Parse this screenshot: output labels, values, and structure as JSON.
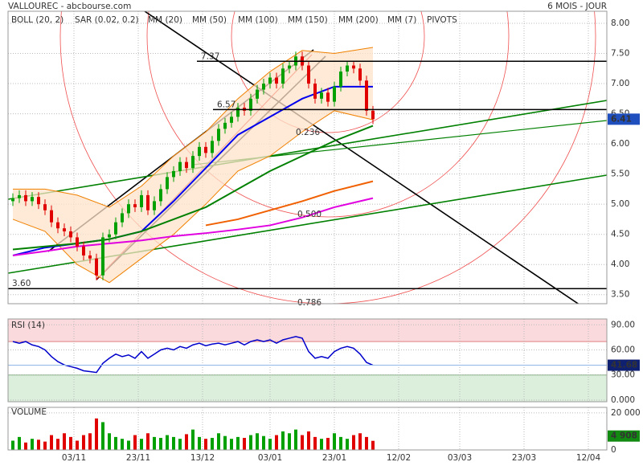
{
  "header": {
    "title": "VALLOUREC - abcbourse.com",
    "period": "6 MOIS - JOUR"
  },
  "chart_data": [
    {
      "type": "candlestick",
      "xlim": [
        -20.5,
        165.75
      ],
      "xticks": [
        {
          "value": 0,
          "label": "03/11"
        },
        {
          "value": 20,
          "label": "23/11"
        },
        {
          "value": 40,
          "label": "13/12"
        },
        {
          "value": 61,
          "label": "03/01"
        },
        {
          "value": 81,
          "label": "23/01"
        },
        {
          "value": 101,
          "label": "12/02"
        },
        {
          "value": 120,
          "label": "03/03"
        },
        {
          "value": 140,
          "label": "23/03"
        },
        {
          "value": 160,
          "label": "12/04"
        }
      ],
      "ylim": [
        3.35,
        8.2
      ],
      "yticks": [
        {
          "value": 3.5,
          "label": "3.50"
        },
        {
          "value": 4,
          "label": "4.00"
        },
        {
          "value": 4.5,
          "label": "4.50"
        },
        {
          "value": 5,
          "label": "5.00"
        },
        {
          "value": 5.5,
          "label": "5.50"
        },
        {
          "value": 6,
          "label": "6.00"
        },
        {
          "value": 6.5,
          "label": "6.50"
        },
        {
          "value": 7,
          "label": "7.00"
        },
        {
          "value": 7.5,
          "label": "7.50"
        },
        {
          "value": 8,
          "label": "8.00"
        }
      ],
      "grid": true,
      "up_color": "#00a000",
      "down_color": "#e00000",
      "x": [
        -19,
        -17,
        -15,
        -13,
        -11,
        -9,
        -7,
        -5,
        -3,
        -1,
        1,
        3,
        5,
        7,
        9,
        11,
        13,
        15,
        17,
        19,
        21,
        23,
        25,
        27,
        29,
        31,
        33,
        35,
        37,
        39,
        41,
        43,
        45,
        47,
        49,
        51,
        53,
        55,
        57,
        59,
        61,
        63,
        65,
        67,
        69,
        71,
        73,
        75,
        77,
        79,
        81,
        83,
        85,
        87,
        89,
        91,
        93
      ],
      "open": [
        5.05,
        5.1,
        5.15,
        5.05,
        5.12,
        5.0,
        4.9,
        4.7,
        4.6,
        4.55,
        4.45,
        4.3,
        4.15,
        4.1,
        3.82,
        4.45,
        4.5,
        4.7,
        4.85,
        5.0,
        4.95,
        5.15,
        4.9,
        5.05,
        5.25,
        5.45,
        5.55,
        5.7,
        5.6,
        5.8,
        5.95,
        5.85,
        6.05,
        6.25,
        6.35,
        6.45,
        6.6,
        6.55,
        6.75,
        6.9,
        7.0,
        7.1,
        7.0,
        7.25,
        7.3,
        7.45,
        7.3,
        7.0,
        6.75,
        6.85,
        6.7,
        6.95,
        7.2,
        7.3,
        7.25,
        7.05,
        6.55
      ],
      "high": [
        5.18,
        5.23,
        5.23,
        5.2,
        5.2,
        5.08,
        4.98,
        4.78,
        4.68,
        4.63,
        4.53,
        4.38,
        4.23,
        4.18,
        4.53,
        4.58,
        4.78,
        4.93,
        5.08,
        5.08,
        5.23,
        5.23,
        5.13,
        5.33,
        5.53,
        5.63,
        5.78,
        5.78,
        5.88,
        6.03,
        6.03,
        6.13,
        6.33,
        6.43,
        6.53,
        6.68,
        6.68,
        6.83,
        6.98,
        7.08,
        7.18,
        7.18,
        7.33,
        7.38,
        7.53,
        7.53,
        7.38,
        7.08,
        6.93,
        6.93,
        7.03,
        7.28,
        7.38,
        7.38,
        7.33,
        7.13,
        6.63
      ],
      "low": [
        4.97,
        5.02,
        4.97,
        4.97,
        4.92,
        4.82,
        4.62,
        4.52,
        4.47,
        4.37,
        4.22,
        4.07,
        4.02,
        3.74,
        3.74,
        4.37,
        4.42,
        4.62,
        4.77,
        4.87,
        4.87,
        4.82,
        4.82,
        4.97,
        5.17,
        5.37,
        5.47,
        5.52,
        5.52,
        5.72,
        5.77,
        5.77,
        5.97,
        6.17,
        6.27,
        6.37,
        6.47,
        6.47,
        6.67,
        6.82,
        6.92,
        6.92,
        6.92,
        7.17,
        7.22,
        7.22,
        6.92,
        6.67,
        6.67,
        6.62,
        6.62,
        6.87,
        7.12,
        7.17,
        6.97,
        6.47,
        6.33
      ],
      "close": [
        5.1,
        5.15,
        5.05,
        5.12,
        5.0,
        4.9,
        4.7,
        4.6,
        4.55,
        4.45,
        4.3,
        4.15,
        4.1,
        3.82,
        4.45,
        4.5,
        4.7,
        4.85,
        5.0,
        4.95,
        5.15,
        4.9,
        5.05,
        5.25,
        5.45,
        5.55,
        5.7,
        5.6,
        5.8,
        5.95,
        5.85,
        6.05,
        6.25,
        6.35,
        6.45,
        6.6,
        6.55,
        6.75,
        6.9,
        7.0,
        7.1,
        7.0,
        7.25,
        7.3,
        7.45,
        7.3,
        7.0,
        6.75,
        6.85,
        6.7,
        6.95,
        7.2,
        7.3,
        7.25,
        7.05,
        6.55,
        6.41
      ],
      "series": [
        {
          "name": "BOLL (20, 2)",
          "color": "#f08000",
          "x": [
            -19,
            -9,
            1,
            11,
            21,
            31,
            41,
            51,
            61,
            71,
            81,
            93
          ],
          "values": [
            5.25,
            5.25,
            5.15,
            4.95,
            5.3,
            5.8,
            6.2,
            6.75,
            7.2,
            7.55,
            7.5,
            7.6
          ],
          "values_low": [
            4.75,
            4.55,
            4.0,
            3.7,
            4.1,
            4.5,
            5.0,
            5.55,
            5.8,
            6.2,
            6.55,
            6.4
          ]
        },
        {
          "name": "SAR (0.02, 0.2)",
          "color": "#e00000"
        },
        {
          "name": "MM (20)",
          "color": "#0000ee",
          "x": [
            -19,
            -9,
            1,
            11,
            21,
            31,
            41,
            51,
            61,
            71,
            81,
            93
          ],
          "values": [
            4.15,
            4.28,
            4.35,
            4.42,
            4.55,
            5.05,
            5.6,
            6.15,
            6.45,
            6.75,
            6.95,
            6.95
          ]
        },
        {
          "name": "MM (50)",
          "color": "#008000",
          "x": [
            -19,
            -9,
            1,
            11,
            21,
            31,
            41,
            51,
            61,
            71,
            81,
            93
          ],
          "values": [
            4.25,
            4.3,
            4.35,
            4.42,
            4.55,
            4.75,
            4.95,
            5.25,
            5.55,
            5.8,
            6.05,
            6.3
          ]
        },
        {
          "name": "MM (100)",
          "color": "#f06000",
          "x": [
            41,
            51,
            61,
            71,
            81,
            93
          ],
          "values": [
            4.65,
            4.75,
            4.9,
            5.05,
            5.22,
            5.38
          ]
        },
        {
          "name": "MM (150)",
          "color": "#a00000"
        },
        {
          "name": "MM (200)",
          "color": "#e000e0",
          "x": [
            -19,
            -9,
            1,
            11,
            21,
            31,
            41,
            51,
            61,
            71,
            81,
            93
          ],
          "values": [
            4.15,
            4.22,
            4.3,
            4.35,
            4.4,
            4.47,
            4.52,
            4.58,
            4.65,
            4.78,
            4.95,
            5.1
          ]
        },
        {
          "name": "MM (7)",
          "color": "#000000"
        },
        {
          "name": "PIVOTS",
          "color": "#777777"
        }
      ],
      "levels": [
        7.37,
        6.57,
        {
          "value": 3.6,
          "label": "3.60"
        }
      ],
      "annotations": [
        "0.236",
        "0.500",
        "0.786"
      ]
    },
    {
      "type": "line",
      "title": "RSI (14)",
      "color": "#0000cc",
      "ylim": [
        -2,
        97
      ],
      "yticks": [
        {
          "value": 0,
          "label": "0.000"
        },
        {
          "value": 30,
          "label": "30.00"
        },
        {
          "value": 60,
          "label": "60.00"
        },
        {
          "value": 90,
          "label": "90.00"
        }
      ],
      "overbought": 70,
      "oversold": 30,
      "values": [
        70,
        68,
        70,
        66,
        64,
        60,
        52,
        46,
        42,
        40,
        38,
        35,
        34,
        33,
        44,
        50,
        55,
        52,
        54,
        50,
        58,
        50,
        55,
        60,
        62,
        60,
        64,
        62,
        66,
        68,
        65,
        67,
        68,
        66,
        68,
        70,
        66,
        70,
        72,
        70,
        72,
        68,
        72,
        74,
        76,
        74,
        58,
        50,
        52,
        50,
        58,
        62,
        64,
        62,
        55,
        45,
        41.68
      ]
    },
    {
      "type": "bar",
      "title": "VOLUME",
      "ylim": [
        0,
        23000
      ],
      "yticks": [
        0,
        {
          "value": 20000,
          "label": "20 000"
        }
      ],
      "values": [
        5000,
        7000,
        4000,
        6000,
        5500,
        4500,
        8000,
        6000,
        9000,
        7000,
        5000,
        8000,
        9000,
        17000,
        15000,
        9000,
        7000,
        6000,
        5000,
        8000,
        6000,
        9000,
        7000,
        6500,
        8000,
        7000,
        6000,
        8500,
        11000,
        7000,
        6000,
        6500,
        9000,
        7500,
        6000,
        7000,
        6500,
        8000,
        9000,
        7500,
        6000,
        8000,
        10000,
        9000,
        11000,
        8000,
        10000,
        7000,
        6000,
        6500,
        9000,
        7000,
        6000,
        8000,
        9000,
        7000,
        4908
      ],
      "value_labels": [
        null,
        null,
        null,
        null,
        null,
        null,
        null,
        null,
        null,
        null,
        null,
        null,
        null,
        null,
        null,
        null,
        null,
        null,
        null,
        null,
        null,
        null,
        null,
        null,
        null,
        null,
        null,
        null,
        null,
        null,
        null,
        null,
        null,
        null,
        null,
        null,
        null,
        null,
        null,
        null,
        null,
        null,
        null,
        null,
        null,
        null,
        null,
        null,
        null,
        null,
        null,
        null,
        null,
        null,
        null,
        null,
        "4 908"
      ]
    }
  ]
}
